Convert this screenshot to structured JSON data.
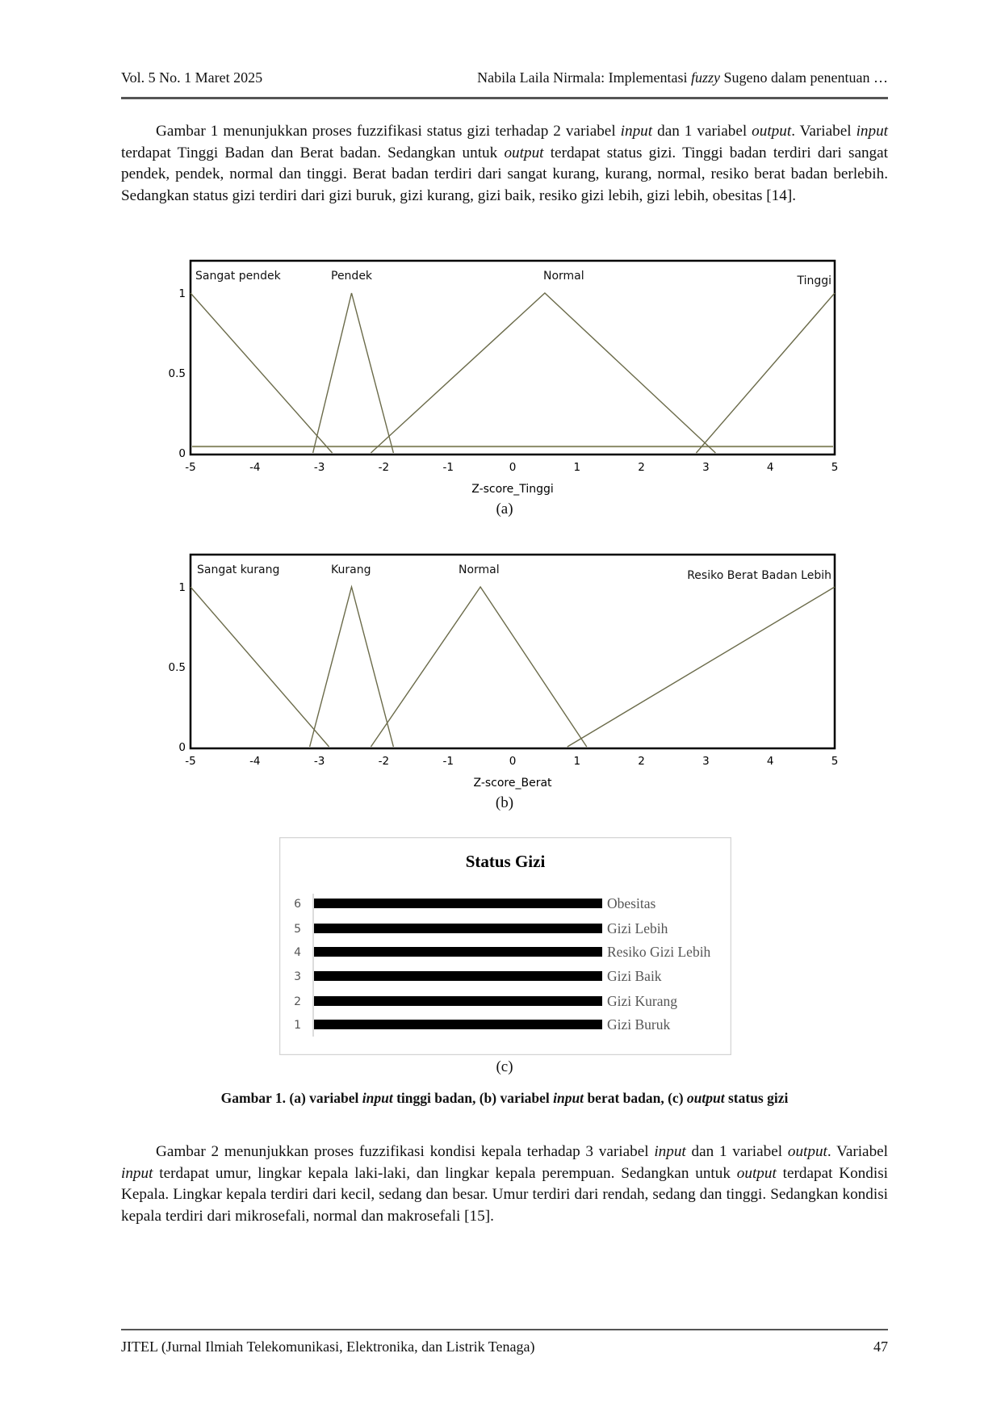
{
  "header": {
    "left": "Vol. 5 No. 1 Maret 2025",
    "right_pre": "Nabila Laila Nirmala: Implementasi ",
    "right_em": "fuzzy",
    "right_post": " Sugeno dalam penentuan …"
  },
  "paragraph1": [
    {
      "t": "Gambar 1 menunjukkan proses fuzzifikasi status gizi terhadap 2 variabel "
    },
    {
      "t": "input",
      "em": true
    },
    {
      "t": " dan 1 variabel "
    },
    {
      "t": "output",
      "em": true
    },
    {
      "t": ". Variabel "
    },
    {
      "t": "input",
      "em": true
    },
    {
      "t": " terdapat Tinggi Badan dan Berat badan. Sedangkan untuk "
    },
    {
      "t": "output",
      "em": true
    },
    {
      "t": " terdapat status gizi. Tinggi badan terdiri dari sangat pendek, pendek, normal dan tinggi. Berat badan terdiri dari sangat kurang, kurang, normal, resiko berat badan berlebih. Sedangkan status gizi terdiri dari gizi buruk, gizi kurang, gizi baik, resiko gizi lebih, gizi lebih, obesitas [14]."
    }
  ],
  "chart_data": [
    {
      "type": "line",
      "subfigure": "(a)",
      "xlabel": "Z-score_Tinggi",
      "ylabel": "",
      "xlim": [
        -5,
        5
      ],
      "ylim": [
        0,
        1
      ],
      "xticks": [
        "-5",
        "-4",
        "-3",
        "-2",
        "-1",
        "0",
        "1",
        "2",
        "3",
        "4",
        "5"
      ],
      "yticks": [
        "0",
        "0.5",
        "1"
      ],
      "line_color": "#6b6b4a",
      "reference_line": 0.04,
      "series": [
        {
          "name": "Sangat pendek",
          "x": [
            -5,
            -2.8
          ],
          "y": [
            1,
            0
          ]
        },
        {
          "name": "Pendek",
          "x": [
            -3.1,
            -2.5,
            -1.85
          ],
          "y": [
            0,
            1,
            0
          ]
        },
        {
          "name": "Normal",
          "x": [
            -2.2,
            0.5,
            3.15
          ],
          "y": [
            0,
            1,
            0
          ]
        },
        {
          "name": "Tinggi",
          "x": [
            2.85,
            5
          ],
          "y": [
            0,
            1
          ]
        }
      ]
    },
    {
      "type": "line",
      "subfigure": "(b)",
      "xlabel": "Z-score_Berat",
      "ylabel": "",
      "xlim": [
        -5,
        5
      ],
      "ylim": [
        0,
        1
      ],
      "xticks": [
        "-5",
        "-4",
        "-3",
        "-2",
        "-1",
        "0",
        "1",
        "2",
        "3",
        "4",
        "5"
      ],
      "yticks": [
        "0",
        "0.5",
        "1"
      ],
      "line_color": "#6b6b4a",
      "series": [
        {
          "name": "Sangat kurang",
          "x": [
            -5,
            -2.85
          ],
          "y": [
            1,
            0
          ]
        },
        {
          "name": "Kurang",
          "x": [
            -3.15,
            -2.5,
            -1.85
          ],
          "y": [
            0,
            1,
            0
          ]
        },
        {
          "name": "Normal",
          "x": [
            -2.2,
            -0.5,
            1.15
          ],
          "y": [
            0,
            1,
            0
          ]
        },
        {
          "name": "Resiko Berat Badan Lebih",
          "x": [
            0.85,
            5
          ],
          "y": [
            0,
            1
          ]
        }
      ]
    },
    {
      "type": "bar",
      "orientation": "horizontal",
      "subfigure": "(c)",
      "title": "Status Gizi",
      "categories": [
        "1",
        "2",
        "3",
        "4",
        "5",
        "6"
      ],
      "labels": [
        "Gizi Buruk",
        "Gizi Kurang",
        "Gizi Baik",
        "Resiko Gizi Lebih",
        "Gizi Lebih",
        "Obesitas"
      ],
      "values": [
        1,
        1,
        1,
        1,
        1,
        1
      ],
      "xlim": [
        0,
        1
      ],
      "bar_color": "#000000"
    }
  ],
  "caption": [
    {
      "t": "Gambar 1.  (a) variabel "
    },
    {
      "t": "input",
      "em": true
    },
    {
      "t": " tinggi badan, (b) variabel "
    },
    {
      "t": "input",
      "em": true
    },
    {
      "t": " berat badan, (c) "
    },
    {
      "t": "output",
      "em": true
    },
    {
      "t": " status gizi"
    }
  ],
  "paragraph2": [
    {
      "t": "Gambar 2 menunjukkan proses fuzzifikasi kondisi kepala terhadap 3 variabel "
    },
    {
      "t": "input",
      "em": true
    },
    {
      "t": " dan 1 variabel "
    },
    {
      "t": "output",
      "em": true
    },
    {
      "t": ". Variabel "
    },
    {
      "t": "input",
      "em": true
    },
    {
      "t": " terdapat umur, lingkar kepala laki-laki, dan lingkar kepala perempuan. Sedangkan untuk "
    },
    {
      "t": "output",
      "em": true
    },
    {
      "t": " terdapat Kondisi Kepala. Lingkar kepala terdiri dari kecil, sedang dan besar. Umur terdiri dari rendah, sedang dan tinggi. Sedangkan kondisi kepala terdiri dari mikrosefali, normal dan makrosefali [15]."
    }
  ],
  "footer": {
    "left": "JITEL (Jurnal Ilmiah Telekomunikasi, Elektronika, dan Listrik Tenaga)",
    "page": "47"
  }
}
